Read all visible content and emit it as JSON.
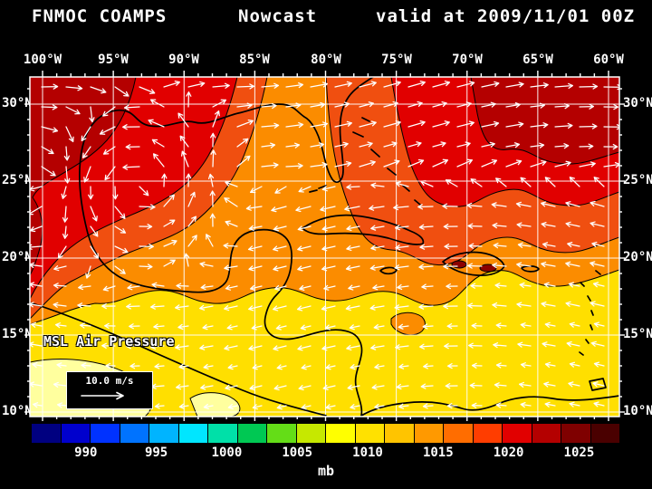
{
  "header": {
    "model": "FNMOC COAMPS",
    "product": "Nowcast",
    "valid": "valid at 2009/11/01 00Z"
  },
  "map": {
    "lon_labels": [
      "100°W",
      "95°W",
      "90°W",
      "85°W",
      "80°W",
      "75°W",
      "70°W",
      "65°W",
      "60°W"
    ],
    "lat_labels": [
      "30°N",
      "25°N",
      "20°N",
      "15°N",
      "10°N"
    ],
    "field_label": "MSL Air Pressure",
    "wind_legend": "10.0 m/s",
    "field_colors": {
      "yellow": "#ffdf00",
      "pale_yellow": "#ffff9e",
      "orange": "#fb8c00",
      "orange_red": "#f04f10",
      "red": "#e10000",
      "dark_red": "#b40000",
      "maroon_spot": "#8c0000"
    }
  },
  "colorbar": {
    "unit": "mb",
    "tick_labels": [
      "990",
      "995",
      "1000",
      "1005",
      "1010",
      "1015",
      "1020",
      "1025"
    ],
    "colors": [
      "#000080",
      "#0000cd",
      "#0032ff",
      "#0073ff",
      "#00b4ff",
      "#00e6ff",
      "#00e0a8",
      "#00c853",
      "#64dd17",
      "#c6e800",
      "#ffff00",
      "#ffe100",
      "#ffc400",
      "#ff9900",
      "#ff6d00",
      "#ff3d00",
      "#e10000",
      "#b40000",
      "#7f0000",
      "#4a0000"
    ]
  },
  "chart_data": {
    "type": "heatmap",
    "title": "FNMOC COAMPS Nowcast valid at 2009/11/01 00Z",
    "field": "MSL Air Pressure",
    "units": "mb",
    "colorbar_ticks": [
      990,
      995,
      1000,
      1005,
      1010,
      1015,
      1020,
      1025
    ],
    "x_ticks": [
      "100°W",
      "95°W",
      "90°W",
      "85°W",
      "80°W",
      "75°W",
      "70°W",
      "65°W",
      "60°W"
    ],
    "y_ticks": [
      "30°N",
      "25°N",
      "20°N",
      "15°N",
      "10°N"
    ],
    "overlay": "wind vectors, reference arrow 10.0 m/s",
    "legend_position": "bottom",
    "field_summary": "pressure near 1015-1020 mb (red) north of ~25N, ~1012 mb (orange) mid-basin, ~1010 mb (yellow) south of ~18N"
  }
}
